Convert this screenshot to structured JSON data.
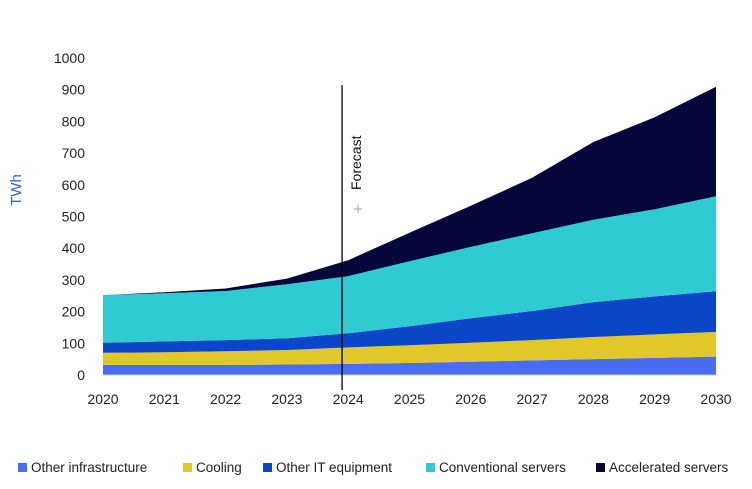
{
  "chart_data": {
    "type": "area",
    "stacked": true,
    "title": "",
    "xlabel": "",
    "ylabel": "TWh",
    "x": [
      2020,
      2021,
      2022,
      2023,
      2024,
      2025,
      2026,
      2027,
      2028,
      2029,
      2030
    ],
    "x_tick_labels": [
      "2020",
      "2021",
      "2022",
      "2023",
      "2024",
      "2025",
      "2026",
      "2027",
      "2028",
      "2029",
      "2030"
    ],
    "ylim": [
      0,
      1000
    ],
    "y_ticks": [
      0,
      100,
      200,
      300,
      400,
      500,
      600,
      700,
      800,
      900,
      1000
    ],
    "y_tick_labels": [
      "0",
      "100",
      "200",
      "300",
      "400",
      "500",
      "600",
      "700",
      "800",
      "900",
      "1000"
    ],
    "grid": false,
    "legend_position": "bottom",
    "series": [
      {
        "name": "Other infrastructure",
        "color": "#4a6cf0",
        "x": [
          2020,
          2021,
          2022,
          2023,
          2024,
          2025,
          2026,
          2027,
          2028,
          2029,
          2030
        ],
        "values": [
          32,
          32,
          32,
          33,
          35,
          38,
          42,
          46,
          50,
          54,
          58
        ]
      },
      {
        "name": "Cooling",
        "color": "#e0c72a",
        "x": [
          2020,
          2021,
          2022,
          2023,
          2024,
          2025,
          2026,
          2027,
          2028,
          2029,
          2030
        ],
        "values": [
          38,
          40,
          43,
          46,
          52,
          56,
          60,
          64,
          70,
          74,
          78
        ]
      },
      {
        "name": "Other IT equipment",
        "color": "#0a47c8",
        "x": [
          2020,
          2021,
          2022,
          2023,
          2024,
          2025,
          2026,
          2027,
          2028,
          2029,
          2030
        ],
        "values": [
          32,
          34,
          35,
          37,
          45,
          60,
          77,
          92,
          110,
          120,
          128
        ]
      },
      {
        "name": "Conventional servers",
        "color": "#2ecbd3",
        "x": [
          2020,
          2021,
          2022,
          2023,
          2024,
          2025,
          2026,
          2027,
          2028,
          2029,
          2030
        ],
        "values": [
          150,
          152,
          155,
          170,
          180,
          205,
          225,
          245,
          260,
          275,
          300
        ]
      },
      {
        "name": "Accelerated servers",
        "color": "#05063a",
        "x": [
          2020,
          2021,
          2022,
          2023,
          2024,
          2025,
          2026,
          2027,
          2028,
          2029,
          2030
        ],
        "values": [
          0,
          3,
          8,
          18,
          50,
          90,
          130,
          175,
          245,
          290,
          345
        ]
      }
    ],
    "annotations": [
      {
        "type": "vline",
        "x": 2023.9,
        "label": "Forecast"
      }
    ]
  }
}
